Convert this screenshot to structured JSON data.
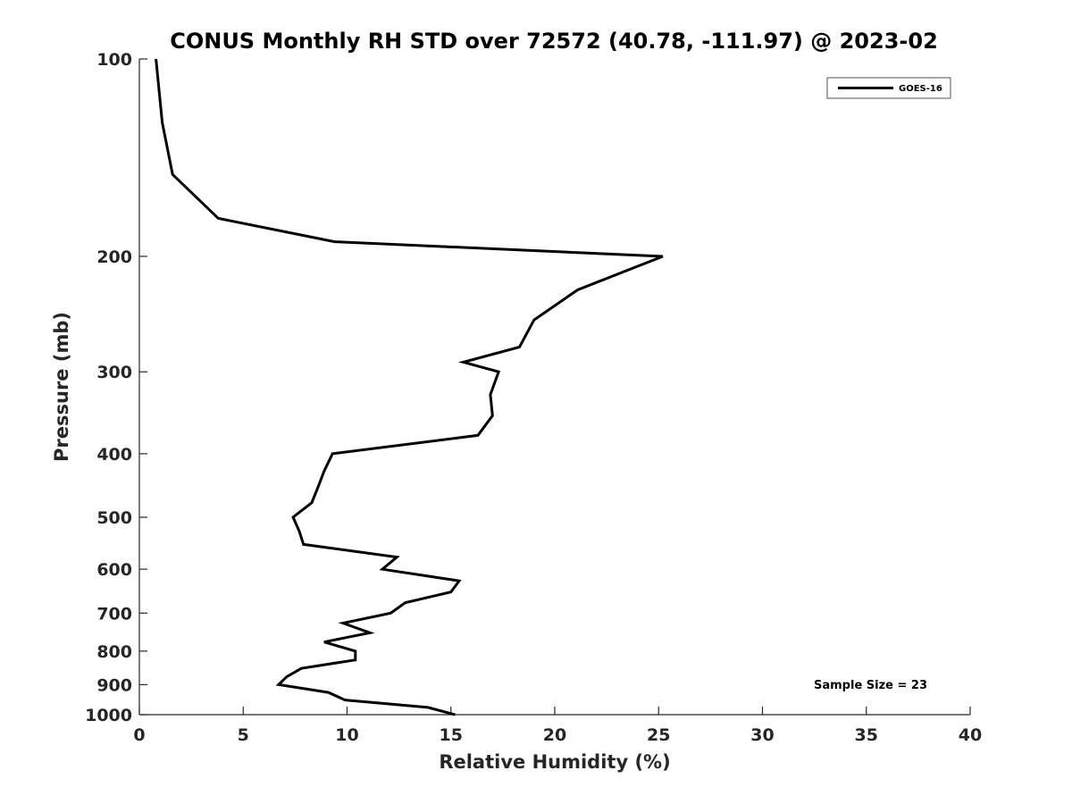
{
  "chart_data": {
    "type": "line",
    "title": "CONUS Monthly RH STD over 72572 (40.78, -111.97) @ 2023-02",
    "xlabel": "Relative Humidity (%)",
    "ylabel": "Pressure (mb)",
    "xlim": [
      0,
      40
    ],
    "ylim": [
      100,
      1000
    ],
    "y_scale": "log",
    "y_reversed": true,
    "grid": false,
    "legend_position": "top-right",
    "x_ticks": [
      "0",
      "5",
      "10",
      "15",
      "20",
      "25",
      "30",
      "35",
      "40"
    ],
    "y_ticks": [
      "100",
      "200",
      "300",
      "400",
      "500",
      "600",
      "700",
      "800",
      "900",
      "1000"
    ],
    "series": [
      {
        "name": "GOES-16",
        "color": "#000000",
        "points": [
          {
            "rh": 0.8,
            "p": 100
          },
          {
            "rh": 1.1,
            "p": 125
          },
          {
            "rh": 1.6,
            "p": 150
          },
          {
            "rh": 3.8,
            "p": 175
          },
          {
            "rh": 9.4,
            "p": 190
          },
          {
            "rh": 25.2,
            "p": 200
          },
          {
            "rh": 21.1,
            "p": 225
          },
          {
            "rh": 19.0,
            "p": 250
          },
          {
            "rh": 18.3,
            "p": 275
          },
          {
            "rh": 15.6,
            "p": 290
          },
          {
            "rh": 17.3,
            "p": 300
          },
          {
            "rh": 16.9,
            "p": 325
          },
          {
            "rh": 17.0,
            "p": 350
          },
          {
            "rh": 16.3,
            "p": 375
          },
          {
            "rh": 9.3,
            "p": 400
          },
          {
            "rh": 8.9,
            "p": 425
          },
          {
            "rh": 8.6,
            "p": 450
          },
          {
            "rh": 8.3,
            "p": 475
          },
          {
            "rh": 7.4,
            "p": 500
          },
          {
            "rh": 7.7,
            "p": 525
          },
          {
            "rh": 7.9,
            "p": 550
          },
          {
            "rh": 12.4,
            "p": 575
          },
          {
            "rh": 11.7,
            "p": 600
          },
          {
            "rh": 15.4,
            "p": 625
          },
          {
            "rh": 15.0,
            "p": 650
          },
          {
            "rh": 12.8,
            "p": 675
          },
          {
            "rh": 12.1,
            "p": 700
          },
          {
            "rh": 9.8,
            "p": 725
          },
          {
            "rh": 11.1,
            "p": 750
          },
          {
            "rh": 8.9,
            "p": 775
          },
          {
            "rh": 10.4,
            "p": 800
          },
          {
            "rh": 10.4,
            "p": 825
          },
          {
            "rh": 7.8,
            "p": 850
          },
          {
            "rh": 7.1,
            "p": 875
          },
          {
            "rh": 6.7,
            "p": 900
          },
          {
            "rh": 9.1,
            "p": 925
          },
          {
            "rh": 9.9,
            "p": 950
          },
          {
            "rh": 13.9,
            "p": 975
          },
          {
            "rh": 15.2,
            "p": 1000
          }
        ]
      }
    ],
    "annotation": "Sample Size = 23"
  }
}
